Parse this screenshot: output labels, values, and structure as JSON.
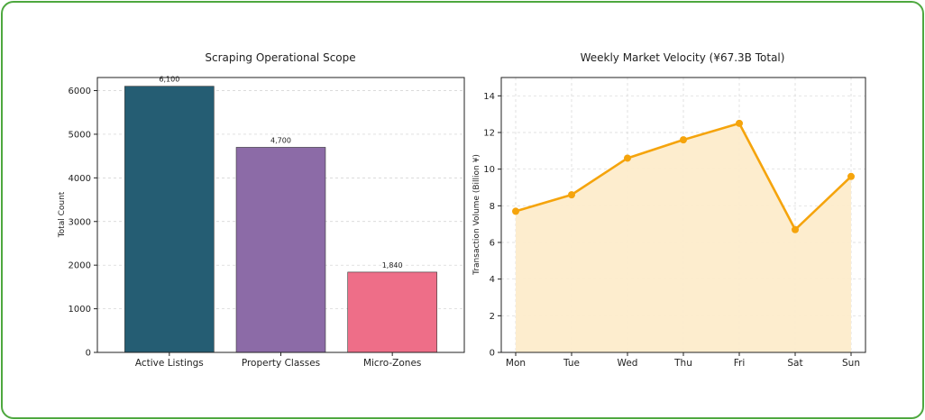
{
  "chart_data": [
    {
      "type": "bar",
      "title": "Scraping Operational Scope",
      "xlabel": "",
      "ylabel": "Total Count",
      "categories": [
        "Active Listings",
        "Property Classes",
        "Micro-Zones"
      ],
      "values": [
        6100,
        4700,
        1840
      ],
      "data_labels": [
        "6,100",
        "4,700",
        "1,840"
      ],
      "colors": [
        "#255d73",
        "#8c6ba7",
        "#ee6e88"
      ],
      "ylim": [
        0,
        6300
      ],
      "yticks": [
        0,
        1000,
        2000,
        3000,
        4000,
        5000,
        6000
      ],
      "grid": true
    },
    {
      "type": "area",
      "title": "Weekly Market Velocity (¥67.3B Total)",
      "xlabel": "",
      "ylabel": "Transaction Volume (Billion ¥)",
      "categories": [
        "Mon",
        "Tue",
        "Wed",
        "Thu",
        "Fri",
        "Sat",
        "Sun"
      ],
      "values": [
        7.7,
        8.6,
        10.6,
        11.6,
        12.5,
        6.7,
        9.6
      ],
      "line_color": "#f5a40c",
      "fill_color": "#fdeccb",
      "ylim": [
        0,
        15
      ],
      "yticks": [
        0,
        2,
        4,
        6,
        8,
        10,
        12,
        14
      ],
      "grid": true
    }
  ]
}
